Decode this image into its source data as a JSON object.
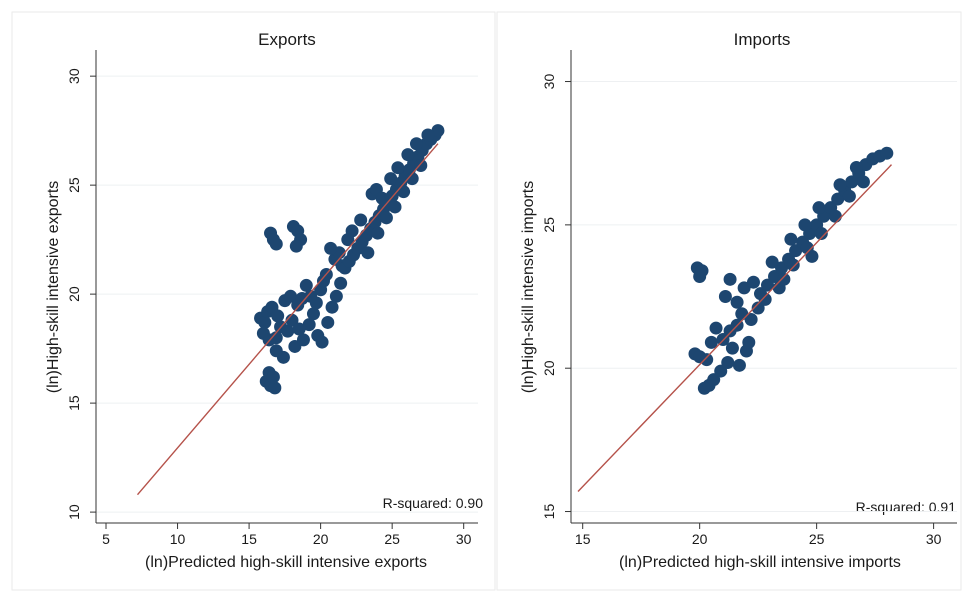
{
  "chart_data": [
    {
      "type": "scatter",
      "title": "Exports",
      "xlabel": "(ln)Predicted high-skill intensive exports",
      "ylabel": "(ln)High-skill intensive exports",
      "xlim": [
        4.3,
        31
      ],
      "ylim": [
        9.5,
        31.2
      ],
      "xticks": [
        5,
        10,
        15,
        20,
        25,
        30
      ],
      "yticks": [
        10,
        15,
        20,
        25,
        30
      ],
      "grid": true,
      "annotation": "R-squared: 0.90",
      "fit_line": [
        [
          7.2,
          10.8
        ],
        [
          28.2,
          26.9
        ]
      ],
      "points": [
        [
          16.5,
          22.8
        ],
        [
          16.7,
          22.5
        ],
        [
          16.9,
          22.3
        ],
        [
          18.1,
          23.1
        ],
        [
          18.4,
          22.9
        ],
        [
          18.6,
          22.5
        ],
        [
          18.3,
          22.2
        ],
        [
          16.2,
          16.0
        ],
        [
          16.5,
          15.8
        ],
        [
          16.8,
          15.7
        ],
        [
          16.4,
          16.4
        ],
        [
          16.7,
          16.2
        ],
        [
          15.8,
          18.9
        ],
        [
          16.1,
          18.7
        ],
        [
          16.3,
          19.2
        ],
        [
          16.6,
          19.4
        ],
        [
          16.0,
          18.2
        ],
        [
          16.4,
          17.9
        ],
        [
          16.9,
          18.0
        ],
        [
          17.2,
          18.5
        ],
        [
          17.5,
          19.7
        ],
        [
          17.9,
          19.9
        ],
        [
          17.7,
          18.3
        ],
        [
          18.0,
          18.8
        ],
        [
          18.4,
          19.5
        ],
        [
          18.7,
          19.8
        ],
        [
          18.2,
          17.6
        ],
        [
          18.8,
          17.9
        ],
        [
          19.2,
          18.6
        ],
        [
          19.5,
          19.1
        ],
        [
          19.7,
          19.6
        ],
        [
          20.0,
          20.2
        ],
        [
          20.2,
          20.6
        ],
        [
          20.4,
          20.9
        ],
        [
          19.8,
          18.1
        ],
        [
          20.1,
          17.8
        ],
        [
          20.5,
          18.7
        ],
        [
          20.8,
          19.4
        ],
        [
          21.1,
          19.9
        ],
        [
          21.4,
          20.5
        ],
        [
          21.0,
          21.6
        ],
        [
          21.3,
          21.9
        ],
        [
          20.7,
          22.1
        ],
        [
          21.5,
          21.3
        ],
        [
          17.4,
          17.1
        ],
        [
          16.9,
          17.4
        ],
        [
          19.0,
          20.4
        ],
        [
          19.3,
          19.9
        ],
        [
          17.0,
          19.0
        ],
        [
          18.5,
          18.4
        ],
        [
          21.7,
          21.2
        ],
        [
          22.0,
          21.5
        ],
        [
          22.3,
          21.8
        ],
        [
          22.6,
          22.1
        ],
        [
          22.9,
          22.4
        ],
        [
          23.2,
          22.7
        ],
        [
          23.5,
          23.0
        ],
        [
          23.8,
          23.3
        ],
        [
          24.1,
          23.6
        ],
        [
          24.4,
          23.9
        ],
        [
          24.7,
          24.2
        ],
        [
          25.0,
          24.5
        ],
        [
          25.3,
          24.8
        ],
        [
          25.6,
          25.1
        ],
        [
          25.9,
          25.4
        ],
        [
          26.2,
          25.7
        ],
        [
          26.5,
          26.0
        ],
        [
          26.8,
          26.3
        ],
        [
          27.1,
          26.6
        ],
        [
          27.4,
          26.9
        ],
        [
          27.7,
          27.1
        ],
        [
          28.0,
          27.3
        ],
        [
          28.2,
          27.5
        ],
        [
          23.6,
          24.6
        ],
        [
          23.9,
          24.8
        ],
        [
          24.3,
          24.4
        ],
        [
          24.9,
          25.3
        ],
        [
          25.4,
          25.8
        ],
        [
          26.1,
          26.4
        ],
        [
          26.7,
          26.9
        ],
        [
          27.5,
          27.3
        ],
        [
          22.8,
          23.4
        ],
        [
          22.2,
          22.9
        ],
        [
          21.9,
          22.5
        ],
        [
          23.3,
          21.9
        ],
        [
          24.0,
          22.8
        ],
        [
          24.6,
          23.5
        ],
        [
          25.2,
          24.0
        ],
        [
          25.8,
          24.7
        ],
        [
          26.4,
          25.3
        ],
        [
          27.0,
          25.9
        ]
      ]
    },
    {
      "type": "scatter",
      "title": "Imports",
      "xlabel": "(ln)Predicted high-skill intensive imports",
      "ylabel": "(ln)High-skill intensive imports",
      "xlim": [
        14.5,
        31
      ],
      "ylim": [
        14.6,
        31.1
      ],
      "xticks": [
        15,
        20,
        25,
        30
      ],
      "yticks": [
        15,
        20,
        25,
        30
      ],
      "grid": true,
      "annotation": "R-squared: 0.91",
      "fit_line": [
        [
          14.8,
          15.7
        ],
        [
          28.2,
          27.1
        ]
      ],
      "points": [
        [
          19.9,
          23.5
        ],
        [
          20.0,
          23.2
        ],
        [
          20.1,
          23.4
        ],
        [
          19.8,
          20.5
        ],
        [
          20.0,
          20.4
        ],
        [
          20.3,
          20.3
        ],
        [
          20.2,
          19.3
        ],
        [
          20.4,
          19.4
        ],
        [
          20.6,
          19.6
        ],
        [
          20.9,
          19.9
        ],
        [
          21.2,
          20.2
        ],
        [
          21.0,
          21.0
        ],
        [
          21.3,
          21.3
        ],
        [
          21.6,
          21.5
        ],
        [
          21.4,
          20.7
        ],
        [
          21.7,
          20.1
        ],
        [
          22.0,
          20.6
        ],
        [
          21.1,
          22.5
        ],
        [
          21.3,
          23.1
        ],
        [
          21.6,
          22.3
        ],
        [
          21.9,
          22.8
        ],
        [
          20.7,
          21.4
        ],
        [
          20.5,
          20.9
        ],
        [
          21.8,
          21.9
        ],
        [
          22.2,
          21.7
        ],
        [
          22.5,
          22.1
        ],
        [
          22.8,
          22.4
        ],
        [
          22.3,
          23.0
        ],
        [
          22.1,
          20.9
        ],
        [
          22.6,
          22.6
        ],
        [
          22.9,
          22.9
        ],
        [
          23.2,
          23.2
        ],
        [
          23.5,
          23.5
        ],
        [
          23.8,
          23.8
        ],
        [
          24.1,
          24.1
        ],
        [
          24.4,
          24.4
        ],
        [
          24.7,
          24.7
        ],
        [
          25.0,
          25.0
        ],
        [
          25.3,
          25.3
        ],
        [
          25.6,
          25.6
        ],
        [
          25.9,
          25.9
        ],
        [
          26.2,
          26.2
        ],
        [
          26.5,
          26.5
        ],
        [
          26.8,
          26.8
        ],
        [
          27.1,
          27.1
        ],
        [
          27.4,
          27.3
        ],
        [
          27.7,
          27.4
        ],
        [
          28.0,
          27.5
        ],
        [
          23.4,
          22.8
        ],
        [
          24.0,
          23.6
        ],
        [
          24.6,
          24.2
        ],
        [
          25.2,
          24.7
        ],
        [
          25.8,
          25.3
        ],
        [
          26.4,
          26.0
        ],
        [
          27.0,
          26.5
        ],
        [
          23.1,
          23.7
        ],
        [
          23.9,
          24.5
        ],
        [
          24.5,
          25.0
        ],
        [
          25.1,
          25.6
        ],
        [
          26.0,
          26.4
        ],
        [
          26.7,
          27.0
        ],
        [
          24.8,
          23.9
        ],
        [
          23.6,
          23.1
        ]
      ]
    }
  ]
}
